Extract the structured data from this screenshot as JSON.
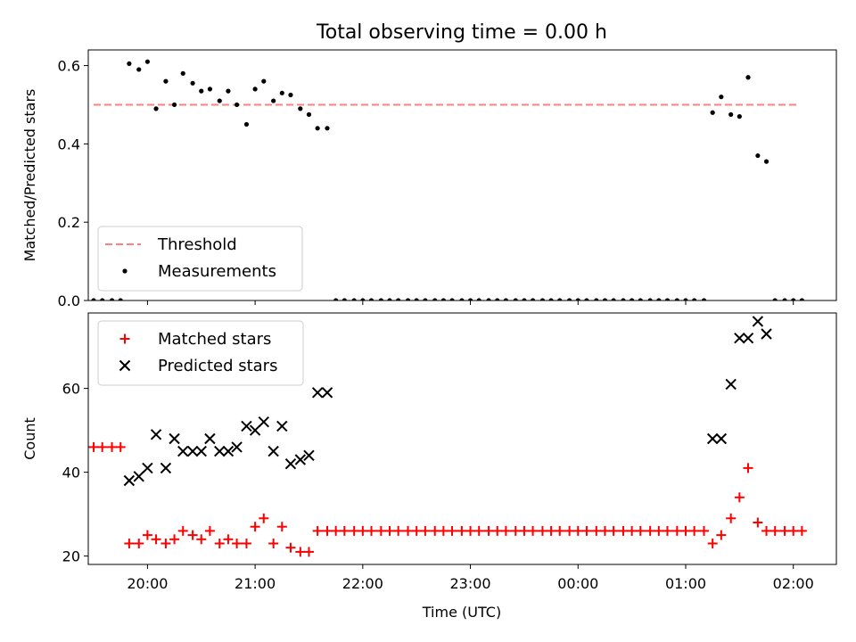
{
  "chart_data": {
    "title": "Total observing time = 0.00 h",
    "xlabel": "Time (UTC)",
    "x_tick_labels": [
      "20:00",
      "21:00",
      "22:00",
      "23:00",
      "00:00",
      "01:00",
      "02:00"
    ],
    "x_axis_range_hours_after_20_00": [
      -0.55,
      6.4
    ],
    "colors": {
      "threshold": "#ff7f7f",
      "measurements": "#000000",
      "matched": "#ff0000",
      "predicted": "#000000"
    },
    "panels": [
      {
        "type": "scatter",
        "ylabel": "Matched/Predicted stars",
        "ylim": [
          0,
          0.64
        ],
        "yticks": [
          0.0,
          0.2,
          0.4,
          0.6
        ],
        "ytick_labels": [
          "0.0",
          "0.2",
          "0.4",
          "0.6"
        ],
        "legend": {
          "position": "lower-left",
          "entries": [
            "Threshold",
            "Measurements"
          ]
        },
        "series": [
          {
            "name": "Threshold",
            "style": "dashed-line",
            "x_range_hours": [
              -0.5,
              6.05
            ],
            "value": 0.5
          },
          {
            "name": "Measurements",
            "style": "dot",
            "points_hours": [
              [
                -0.5,
                0.0
              ],
              [
                -0.42,
                0.0
              ],
              [
                -0.33,
                0.0
              ],
              [
                -0.25,
                0.0
              ],
              [
                -0.17,
                0.605
              ],
              [
                -0.08,
                0.59
              ],
              [
                0.0,
                0.61
              ],
              [
                0.08,
                0.49
              ],
              [
                0.17,
                0.56
              ],
              [
                0.25,
                0.5
              ],
              [
                0.33,
                0.58
              ],
              [
                0.42,
                0.555
              ],
              [
                0.5,
                0.535
              ],
              [
                0.58,
                0.54
              ],
              [
                0.67,
                0.51
              ],
              [
                0.75,
                0.535
              ],
              [
                0.83,
                0.5
              ],
              [
                0.92,
                0.45
              ],
              [
                1.0,
                0.54
              ],
              [
                1.08,
                0.56
              ],
              [
                1.17,
                0.51
              ],
              [
                1.25,
                0.53
              ],
              [
                1.33,
                0.525
              ],
              [
                1.42,
                0.49
              ],
              [
                1.5,
                0.475
              ],
              [
                1.58,
                0.44
              ],
              [
                1.67,
                0.44
              ],
              [
                1.75,
                0.0
              ],
              [
                1.83,
                0.0
              ],
              [
                1.92,
                0.0
              ],
              [
                2.0,
                0.0
              ],
              [
                2.08,
                0.0
              ],
              [
                2.17,
                0.0
              ],
              [
                2.25,
                0.0
              ],
              [
                2.33,
                0.0
              ],
              [
                2.42,
                0.0
              ],
              [
                2.5,
                0.0
              ],
              [
                2.58,
                0.0
              ],
              [
                2.67,
                0.0
              ],
              [
                2.75,
                0.0
              ],
              [
                2.83,
                0.0
              ],
              [
                2.92,
                0.0
              ],
              [
                3.0,
                0.0
              ],
              [
                3.08,
                0.0
              ],
              [
                3.17,
                0.0
              ],
              [
                3.25,
                0.0
              ],
              [
                3.33,
                0.0
              ],
              [
                3.42,
                0.0
              ],
              [
                3.5,
                0.0
              ],
              [
                3.58,
                0.0
              ],
              [
                3.67,
                0.0
              ],
              [
                3.75,
                0.0
              ],
              [
                3.83,
                0.0
              ],
              [
                3.92,
                0.0
              ],
              [
                4.0,
                0.0
              ],
              [
                4.08,
                0.0
              ],
              [
                4.17,
                0.0
              ],
              [
                4.25,
                0.0
              ],
              [
                4.33,
                0.0
              ],
              [
                4.42,
                0.0
              ],
              [
                4.5,
                0.0
              ],
              [
                4.58,
                0.0
              ],
              [
                4.67,
                0.0
              ],
              [
                4.75,
                0.0
              ],
              [
                4.83,
                0.0
              ],
              [
                4.92,
                0.0
              ],
              [
                5.0,
                0.0
              ],
              [
                5.08,
                0.0
              ],
              [
                5.17,
                0.0
              ],
              [
                5.25,
                0.48
              ],
              [
                5.33,
                0.52
              ],
              [
                5.42,
                0.475
              ],
              [
                5.5,
                0.47
              ],
              [
                5.58,
                0.57
              ],
              [
                5.67,
                0.37
              ],
              [
                5.75,
                0.355
              ],
              [
                5.83,
                0.0
              ],
              [
                5.92,
                0.0
              ],
              [
                6.0,
                0.0
              ],
              [
                6.08,
                0.0
              ]
            ]
          }
        ]
      },
      {
        "type": "scatter",
        "ylabel": "Count",
        "ylim": [
          18,
          78
        ],
        "yticks": [
          20,
          40,
          60
        ],
        "ytick_labels": [
          "20",
          "40",
          "60"
        ],
        "legend": {
          "position": "top-left",
          "entries": [
            "Matched stars",
            "Predicted stars"
          ]
        },
        "series": [
          {
            "name": "Matched stars",
            "style": "plus",
            "points_hours": [
              [
                -0.5,
                46
              ],
              [
                -0.42,
                46
              ],
              [
                -0.33,
                46
              ],
              [
                -0.25,
                46
              ],
              [
                -0.17,
                23
              ],
              [
                -0.08,
                23
              ],
              [
                0.0,
                25
              ],
              [
                0.08,
                24
              ],
              [
                0.17,
                23
              ],
              [
                0.25,
                24
              ],
              [
                0.33,
                26
              ],
              [
                0.42,
                25
              ],
              [
                0.5,
                24
              ],
              [
                0.58,
                26
              ],
              [
                0.67,
                23
              ],
              [
                0.75,
                24
              ],
              [
                0.83,
                23
              ],
              [
                0.92,
                23
              ],
              [
                1.0,
                27
              ],
              [
                1.08,
                29
              ],
              [
                1.17,
                23
              ],
              [
                1.25,
                27
              ],
              [
                1.33,
                22
              ],
              [
                1.42,
                21
              ],
              [
                1.5,
                21
              ],
              [
                1.58,
                26
              ],
              [
                1.67,
                26
              ],
              [
                1.75,
                26
              ],
              [
                1.83,
                26
              ],
              [
                1.92,
                26
              ],
              [
                2.0,
                26
              ],
              [
                2.08,
                26
              ],
              [
                2.17,
                26
              ],
              [
                2.25,
                26
              ],
              [
                2.33,
                26
              ],
              [
                2.42,
                26
              ],
              [
                2.5,
                26
              ],
              [
                2.58,
                26
              ],
              [
                2.67,
                26
              ],
              [
                2.75,
                26
              ],
              [
                2.83,
                26
              ],
              [
                2.92,
                26
              ],
              [
                3.0,
                26
              ],
              [
                3.08,
                26
              ],
              [
                3.17,
                26
              ],
              [
                3.25,
                26
              ],
              [
                3.33,
                26
              ],
              [
                3.42,
                26
              ],
              [
                3.5,
                26
              ],
              [
                3.58,
                26
              ],
              [
                3.67,
                26
              ],
              [
                3.75,
                26
              ],
              [
                3.83,
                26
              ],
              [
                3.92,
                26
              ],
              [
                4.0,
                26
              ],
              [
                4.08,
                26
              ],
              [
                4.17,
                26
              ],
              [
                4.25,
                26
              ],
              [
                4.33,
                26
              ],
              [
                4.42,
                26
              ],
              [
                4.5,
                26
              ],
              [
                4.58,
                26
              ],
              [
                4.67,
                26
              ],
              [
                4.75,
                26
              ],
              [
                4.83,
                26
              ],
              [
                4.92,
                26
              ],
              [
                5.0,
                26
              ],
              [
                5.08,
                26
              ],
              [
                5.17,
                26
              ],
              [
                5.25,
                23
              ],
              [
                5.33,
                25
              ],
              [
                5.42,
                29
              ],
              [
                5.5,
                34
              ],
              [
                5.58,
                41
              ],
              [
                5.67,
                28
              ],
              [
                5.75,
                26
              ],
              [
                5.83,
                26
              ],
              [
                5.92,
                26
              ],
              [
                6.0,
                26
              ],
              [
                6.08,
                26
              ]
            ]
          },
          {
            "name": "Predicted stars",
            "style": "x",
            "points_hours": [
              [
                -0.17,
                38
              ],
              [
                -0.08,
                39
              ],
              [
                0.0,
                41
              ],
              [
                0.08,
                49
              ],
              [
                0.17,
                41
              ],
              [
                0.25,
                48
              ],
              [
                0.33,
                45
              ],
              [
                0.42,
                45
              ],
              [
                0.5,
                45
              ],
              [
                0.58,
                48
              ],
              [
                0.67,
                45
              ],
              [
                0.75,
                45
              ],
              [
                0.83,
                46
              ],
              [
                0.92,
                51
              ],
              [
                1.0,
                50
              ],
              [
                1.08,
                52
              ],
              [
                1.17,
                45
              ],
              [
                1.25,
                51
              ],
              [
                1.33,
                42
              ],
              [
                1.42,
                43
              ],
              [
                1.5,
                44
              ],
              [
                1.58,
                59
              ],
              [
                1.67,
                59
              ],
              [
                5.25,
                48
              ],
              [
                5.33,
                48
              ],
              [
                5.42,
                61
              ],
              [
                5.5,
                72
              ],
              [
                5.58,
                72
              ],
              [
                5.67,
                76
              ],
              [
                5.75,
                73
              ]
            ]
          }
        ]
      }
    ]
  }
}
